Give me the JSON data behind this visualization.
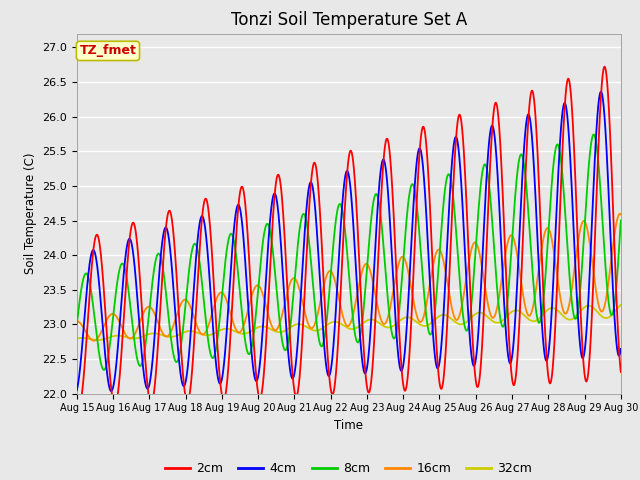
{
  "title": "Tonzi Soil Temperature Set A",
  "xlabel": "Time",
  "ylabel": "Soil Temperature (C)",
  "ylim": [
    22.0,
    27.2
  ],
  "yticks": [
    22.0,
    22.5,
    23.0,
    23.5,
    24.0,
    24.5,
    25.0,
    25.5,
    26.0,
    26.5,
    27.0
  ],
  "xlim_start": 0,
  "xlim_end": 360,
  "xtick_positions": [
    0,
    24,
    48,
    72,
    96,
    120,
    144,
    168,
    192,
    216,
    240,
    264,
    288,
    312,
    336,
    360
  ],
  "xtick_labels": [
    "Aug 15",
    "Aug 16",
    "Aug 17",
    "Aug 18",
    "Aug 19",
    "Aug 20",
    "Aug 21",
    "Aug 22",
    "Aug 23",
    "Aug 24",
    "Aug 25",
    "Aug 26",
    "Aug 27",
    "Aug 28",
    "Aug 29",
    "Aug 30"
  ],
  "annotation_text": "TZ_fmet",
  "annotation_bg": "#ffffcc",
  "annotation_border": "#bbbb00",
  "annotation_text_color": "#cc0000",
  "colors": {
    "2cm": "#ff0000",
    "4cm": "#0000ff",
    "8cm": "#00cc00",
    "16cm": "#ff8800",
    "32cm": "#cccc00"
  },
  "legend_labels": [
    "2cm",
    "4cm",
    "8cm",
    "16cm",
    "32cm"
  ],
  "plot_bg": "#e8e8e8",
  "fig_bg": "#e8e8e8",
  "title_fontsize": 12
}
